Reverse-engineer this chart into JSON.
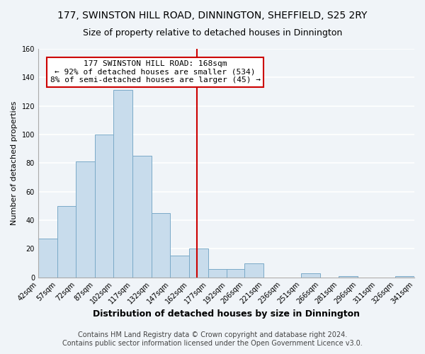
{
  "title": "177, SWINSTON HILL ROAD, DINNINGTON, SHEFFIELD, S25 2RY",
  "subtitle": "Size of property relative to detached houses in Dinnington",
  "xlabel": "Distribution of detached houses by size in Dinnington",
  "ylabel": "Number of detached properties",
  "bar_color": "#c8dcec",
  "bar_edge_color": "#7aaac8",
  "bins": [
    42,
    57,
    72,
    87,
    102,
    117,
    132,
    147,
    162,
    177,
    192,
    206,
    221,
    236,
    251,
    266,
    281,
    296,
    311,
    326,
    341
  ],
  "counts": [
    27,
    50,
    81,
    100,
    131,
    85,
    45,
    15,
    20,
    6,
    6,
    10,
    0,
    0,
    3,
    0,
    1,
    0,
    0,
    1
  ],
  "tick_labels": [
    "42sqm",
    "57sqm",
    "72sqm",
    "87sqm",
    "102sqm",
    "117sqm",
    "132sqm",
    "147sqm",
    "162sqm",
    "177sqm",
    "192sqm",
    "206sqm",
    "221sqm",
    "236sqm",
    "251sqm",
    "266sqm",
    "281sqm",
    "296sqm",
    "311sqm",
    "326sqm",
    "341sqm"
  ],
  "ylim": [
    0,
    160
  ],
  "yticks": [
    0,
    20,
    40,
    60,
    80,
    100,
    120,
    140,
    160
  ],
  "property_value": 168,
  "vline_color": "#cc0000",
  "annotation_line1": "177 SWINSTON HILL ROAD: 168sqm",
  "annotation_line2": "← 92% of detached houses are smaller (534)",
  "annotation_line3": "8% of semi-detached houses are larger (45) →",
  "annotation_box_edgecolor": "#cc0000",
  "annotation_box_facecolor": "#ffffff",
  "footer_line1": "Contains HM Land Registry data © Crown copyright and database right 2024.",
  "footer_line2": "Contains public sector information licensed under the Open Government Licence v3.0.",
  "background_color": "#f0f4f8",
  "grid_color": "#ffffff",
  "title_fontsize": 10,
  "subtitle_fontsize": 9,
  "xlabel_fontsize": 9,
  "ylabel_fontsize": 8,
  "tick_fontsize": 7,
  "annotation_fontsize": 8,
  "footer_fontsize": 7
}
